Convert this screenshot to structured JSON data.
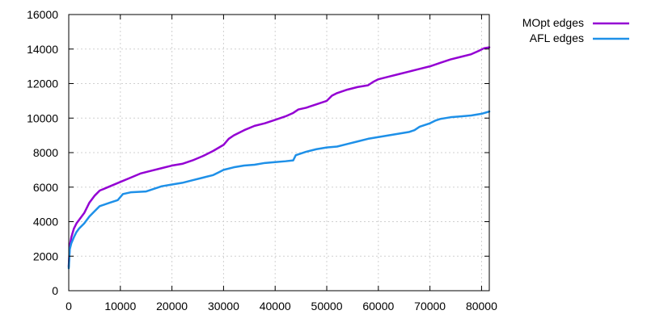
{
  "chart_data": {
    "type": "line",
    "title": "",
    "xlabel": "",
    "ylabel": "",
    "xlim": [
      0,
      81500
    ],
    "ylim": [
      0,
      16000
    ],
    "xticks": [
      0,
      10000,
      20000,
      30000,
      40000,
      50000,
      60000,
      70000,
      80000
    ],
    "yticks": [
      0,
      2000,
      4000,
      6000,
      8000,
      10000,
      12000,
      14000,
      16000
    ],
    "xtick_labels": [
      "0",
      "10000",
      "20000",
      "30000",
      "40000",
      "50000",
      "60000",
      "70000",
      "80000"
    ],
    "ytick_labels": [
      "0",
      "2000",
      "4000",
      "6000",
      "8000",
      "10000",
      "12000",
      "14000",
      "16000"
    ],
    "grid": true,
    "legend_position": "outside-top-right",
    "series": [
      {
        "name": "MOpt edges",
        "color": "#9400d3",
        "x": [
          0,
          200,
          500,
          1000,
          1500,
          2000,
          3000,
          4000,
          5000,
          6000,
          8000,
          10000,
          12000,
          14000,
          16000,
          18000,
          20000,
          22000,
          24000,
          26000,
          28000,
          30000,
          31000,
          32000,
          34000,
          36000,
          38000,
          40000,
          42000,
          43500,
          44500,
          46000,
          48000,
          50000,
          51000,
          52000,
          54000,
          56000,
          58000,
          59000,
          60000,
          62000,
          64000,
          66000,
          68000,
          70000,
          72000,
          74000,
          76000,
          78000,
          79500,
          80500,
          81500
        ],
        "y": [
          1400,
          2600,
          3100,
          3600,
          3900,
          4100,
          4500,
          5100,
          5500,
          5800,
          6050,
          6300,
          6550,
          6800,
          6950,
          7100,
          7250,
          7350,
          7550,
          7800,
          8100,
          8450,
          8800,
          9000,
          9300,
          9550,
          9700,
          9900,
          10100,
          10300,
          10500,
          10600,
          10800,
          11000,
          11300,
          11450,
          11650,
          11800,
          11900,
          12100,
          12250,
          12400,
          12550,
          12700,
          12850,
          13000,
          13200,
          13400,
          13550,
          13700,
          13900,
          14050,
          14100
        ]
      },
      {
        "name": "AFL edges",
        "color": "#1e90e8",
        "x": [
          0,
          200,
          500,
          1000,
          1500,
          2000,
          3000,
          4000,
          5000,
          6000,
          8000,
          9500,
          10500,
          12000,
          15000,
          16000,
          18000,
          20000,
          22000,
          24000,
          26000,
          28000,
          29000,
          30000,
          32000,
          34000,
          36000,
          38000,
          40000,
          42000,
          43500,
          44000,
          46000,
          48000,
          50000,
          52000,
          54000,
          56000,
          58000,
          60000,
          62000,
          64000,
          66000,
          67000,
          68000,
          70000,
          71000,
          72000,
          74000,
          76000,
          78000,
          80000,
          81500
        ],
        "y": [
          1300,
          2400,
          2750,
          3100,
          3400,
          3600,
          3900,
          4300,
          4600,
          4900,
          5100,
          5250,
          5600,
          5700,
          5750,
          5850,
          6050,
          6150,
          6250,
          6400,
          6550,
          6700,
          6850,
          7000,
          7150,
          7250,
          7300,
          7400,
          7450,
          7500,
          7550,
          7850,
          8050,
          8200,
          8300,
          8350,
          8500,
          8650,
          8800,
          8900,
          9000,
          9100,
          9200,
          9300,
          9500,
          9700,
          9850,
          9950,
          10050,
          10100,
          10150,
          10250,
          10380
        ]
      }
    ]
  }
}
